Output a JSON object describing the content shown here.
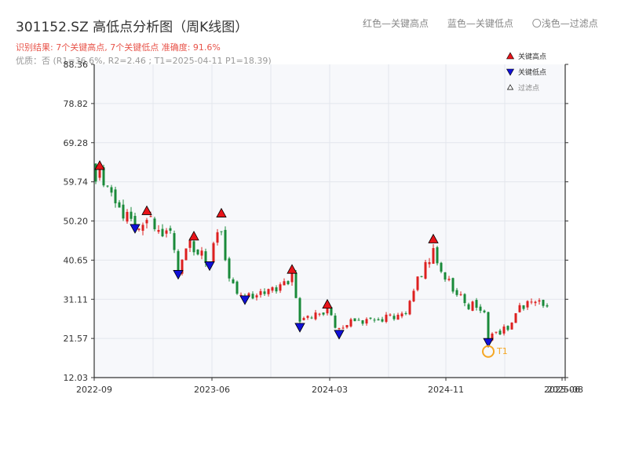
{
  "header": {
    "title": "301152.SZ 高低点分析图（周K线图）",
    "legend_high": "红色—关键高点",
    "legend_low": "蓝色—关键低点",
    "legend_filtered": "〇浅色—过滤点",
    "result": "识别结果: 7个关键高点, 7个关键低点   准确度: 91.6%",
    "quality": "优质：否  (R1=36.6%, R2=2.46 ; T1=2025-04-11 P1=18.39)"
  },
  "chart_data": {
    "type": "candlestick",
    "x_ticks": [
      "2022-09",
      "2023-06",
      "2024-03",
      "2024-11",
      "2025-06",
      "2025-08"
    ],
    "y_ticks": [
      "88.36",
      "78.82",
      "69.28",
      "59.74",
      "50.20",
      "40.65",
      "31.11",
      "21.57",
      "12.03"
    ],
    "ylim": [
      12.03,
      88.36
    ],
    "legend": {
      "high": "关键高点",
      "low": "关键低点",
      "filtered": "过滤点"
    },
    "colors": {
      "up": "#dd1f1f",
      "down": "#1a8a3a",
      "high_marker": "#e8141a",
      "low_marker": "#1010d8",
      "t1": "#f5a623"
    },
    "key_highs": [
      {
        "week": 1,
        "value": 63.5
      },
      {
        "week": 13,
        "value": 52.5
      },
      {
        "week": 25,
        "value": 46.3
      },
      {
        "week": 32,
        "value": 51.9
      },
      {
        "week": 50,
        "value": 38.2
      },
      {
        "week": 59,
        "value": 29.7
      },
      {
        "week": 86,
        "value": 45.6
      }
    ],
    "key_lows": [
      {
        "week": 10,
        "value": 48.4
      },
      {
        "week": 21,
        "value": 37.2
      },
      {
        "week": 29,
        "value": 39.3
      },
      {
        "week": 38,
        "value": 31.0
      },
      {
        "week": 52,
        "value": 24.3
      },
      {
        "week": 62,
        "value": 22.6
      },
      {
        "week": 100,
        "value": 20.6
      }
    ],
    "t1": {
      "label": "T1",
      "week": 100,
      "value": 18.39
    },
    "waypoints": [
      [
        0,
        60.5
      ],
      [
        1,
        61.0
      ],
      [
        4,
        55.0
      ],
      [
        6,
        52.0
      ],
      [
        8,
        53.5
      ],
      [
        10,
        49.0
      ],
      [
        13,
        51.5
      ],
      [
        16,
        49.0
      ],
      [
        19,
        46.0
      ],
      [
        21,
        38.0
      ],
      [
        24,
        44.0
      ],
      [
        26,
        43.5
      ],
      [
        29,
        40.5
      ],
      [
        32,
        49.0
      ],
      [
        33,
        40.0
      ],
      [
        36,
        33.0
      ],
      [
        38,
        32.0
      ],
      [
        42,
        33.0
      ],
      [
        46,
        33.0
      ],
      [
        50,
        36.5
      ],
      [
        52,
        26.0
      ],
      [
        55,
        27.5
      ],
      [
        59,
        28.5
      ],
      [
        61,
        25.0
      ],
      [
        62,
        23.5
      ],
      [
        65,
        25.5
      ],
      [
        70,
        26.0
      ],
      [
        75,
        26.5
      ],
      [
        79,
        28.0
      ],
      [
        83,
        38.0
      ],
      [
        86,
        43.0
      ],
      [
        88,
        37.0
      ],
      [
        92,
        33.0
      ],
      [
        95,
        29.5
      ],
      [
        97,
        29.8
      ],
      [
        99,
        27.0
      ],
      [
        100,
        21.5
      ],
      [
        102,
        22.5
      ],
      [
        105,
        24.5
      ],
      [
        108,
        29.0
      ],
      [
        111,
        31.0
      ],
      [
        115,
        30.5
      ]
    ]
  }
}
